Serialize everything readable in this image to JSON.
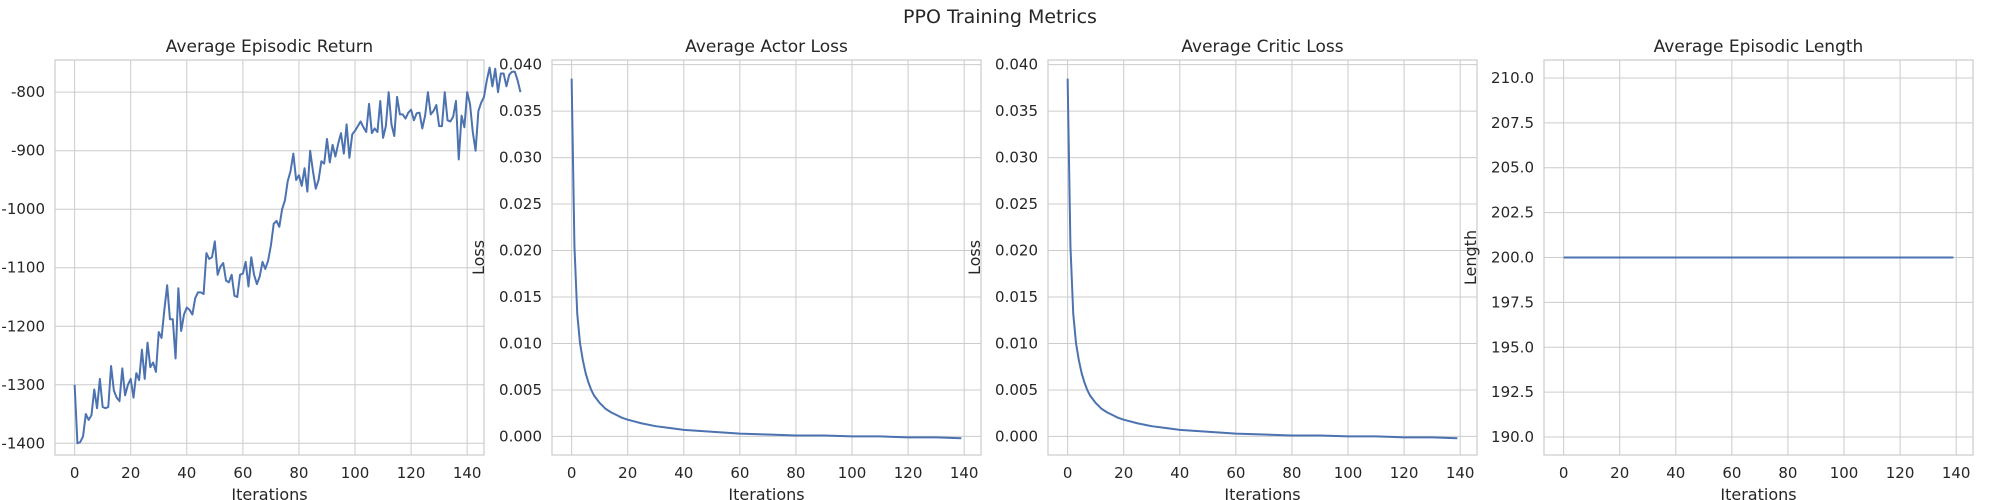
{
  "suptitle": "PPO Training Metrics",
  "chart_data": [
    {
      "type": "line",
      "title": "Average Episodic Return",
      "xlabel": "Iterations",
      "ylabel": "",
      "xlim": [
        -7,
        146
      ],
      "ylim": [
        -1420,
        -745
      ],
      "xticks": [
        0,
        20,
        40,
        60,
        80,
        100,
        120,
        140
      ],
      "yticks": [
        -1400,
        -1300,
        -1200,
        -1100,
        -1000,
        -900,
        -800
      ],
      "ytick_labels": [
        "-1400",
        "-1300",
        "-1200",
        "-1100",
        "-1000",
        "-900",
        "-800"
      ],
      "grid": true,
      "color": "#4c72b0",
      "x_start": 0,
      "x_step": 1,
      "values": [
        -1300,
        -1400,
        -1398,
        -1388,
        -1350,
        -1360,
        -1352,
        -1308,
        -1340,
        -1290,
        -1338,
        -1340,
        -1338,
        -1268,
        -1310,
        -1322,
        -1328,
        -1272,
        -1318,
        -1300,
        -1290,
        -1322,
        -1280,
        -1292,
        -1240,
        -1290,
        -1228,
        -1270,
        -1262,
        -1278,
        -1210,
        -1220,
        -1172,
        -1130,
        -1188,
        -1188,
        -1255,
        -1135,
        -1208,
        -1180,
        -1168,
        -1172,
        -1180,
        -1152,
        -1142,
        -1142,
        -1145,
        -1075,
        -1085,
        -1082,
        -1055,
        -1112,
        -1098,
        -1092,
        -1122,
        -1125,
        -1112,
        -1148,
        -1150,
        -1112,
        -1110,
        -1090,
        -1132,
        -1082,
        -1112,
        -1128,
        -1115,
        -1090,
        -1102,
        -1088,
        -1062,
        -1025,
        -1020,
        -1030,
        -1000,
        -985,
        -952,
        -935,
        -905,
        -950,
        -942,
        -960,
        -930,
        -970,
        -900,
        -935,
        -965,
        -950,
        -918,
        -922,
        -880,
        -920,
        -890,
        -910,
        -888,
        -870,
        -905,
        -855,
        -912,
        -872,
        -866,
        -858,
        -850,
        -860,
        -868,
        -820,
        -870,
        -862,
        -868,
        -815,
        -878,
        -858,
        -800,
        -855,
        -875,
        -808,
        -838,
        -838,
        -845,
        -835,
        -830,
        -848,
        -836,
        -835,
        -862,
        -840,
        -800,
        -838,
        -832,
        -822,
        -858,
        -858,
        -800,
        -848,
        -850,
        -842,
        -815,
        -915,
        -840,
        -860,
        -800,
        -820,
        -868,
        -900,
        -832,
        -818,
        -808,
        -780,
        -758,
        -790,
        -760,
        -800,
        -768,
        -768,
        -790,
        -770,
        -765,
        -765,
        -780,
        -800
      ]
    },
    {
      "type": "line",
      "title": "Average Actor Loss",
      "xlabel": "Iterations",
      "ylabel": "Loss",
      "xlim": [
        -7,
        146
      ],
      "ylim": [
        -0.002,
        0.0405
      ],
      "xticks": [
        0,
        20,
        40,
        60,
        80,
        100,
        120,
        140
      ],
      "yticks": [
        0,
        0.005,
        0.01,
        0.015,
        0.02,
        0.025,
        0.03,
        0.035,
        0.04
      ],
      "ytick_labels": [
        "0.000",
        "0.005",
        "0.010",
        "0.015",
        "0.020",
        "0.025",
        "0.030",
        "0.035",
        "0.040"
      ],
      "grid": true,
      "color": "#4c72b0",
      "x": [
        0,
        1,
        2,
        3,
        4,
        5,
        6,
        7,
        8,
        9,
        10,
        12,
        14,
        16,
        18,
        20,
        25,
        30,
        35,
        40,
        50,
        60,
        70,
        80,
        90,
        100,
        110,
        120,
        130,
        139
      ],
      "values": [
        0.0385,
        0.0205,
        0.0132,
        0.01,
        0.0082,
        0.0068,
        0.0058,
        0.005,
        0.0044,
        0.004,
        0.0036,
        0.003,
        0.0026,
        0.0023,
        0.002,
        0.0018,
        0.0014,
        0.0011,
        0.0009,
        0.0007,
        0.0005,
        0.0003,
        0.0002,
        0.0001,
        0.0001,
        0.0,
        -0.0,
        -0.0001,
        -0.0001,
        -0.0002
      ]
    },
    {
      "type": "line",
      "title": "Average Critic Loss",
      "xlabel": "Iterations",
      "ylabel": "Loss",
      "xlim": [
        -7,
        146
      ],
      "ylim": [
        -0.002,
        0.0405
      ],
      "xticks": [
        0,
        20,
        40,
        60,
        80,
        100,
        120,
        140
      ],
      "yticks": [
        0,
        0.005,
        0.01,
        0.015,
        0.02,
        0.025,
        0.03,
        0.035,
        0.04
      ],
      "ytick_labels": [
        "0.000",
        "0.005",
        "0.010",
        "0.015",
        "0.020",
        "0.025",
        "0.030",
        "0.035",
        "0.040"
      ],
      "grid": true,
      "color": "#4c72b0",
      "x": [
        0,
        1,
        2,
        3,
        4,
        5,
        6,
        7,
        8,
        9,
        10,
        12,
        14,
        16,
        18,
        20,
        25,
        30,
        35,
        40,
        50,
        60,
        70,
        80,
        90,
        100,
        110,
        120,
        130,
        139
      ],
      "values": [
        0.0385,
        0.0205,
        0.0132,
        0.01,
        0.0082,
        0.0068,
        0.0058,
        0.005,
        0.0044,
        0.004,
        0.0036,
        0.003,
        0.0026,
        0.0023,
        0.002,
        0.0018,
        0.0014,
        0.0011,
        0.0009,
        0.0007,
        0.0005,
        0.0003,
        0.0002,
        0.0001,
        0.0001,
        0.0,
        -0.0,
        -0.0001,
        -0.0001,
        -0.0002
      ]
    },
    {
      "type": "line",
      "title": "Average Episodic Length",
      "xlabel": "Iterations",
      "ylabel": "Length",
      "xlim": [
        -7,
        146
      ],
      "ylim": [
        189,
        211
      ],
      "xticks": [
        0,
        20,
        40,
        60,
        80,
        100,
        120,
        140
      ],
      "yticks": [
        190,
        192.5,
        195,
        197.5,
        200,
        202.5,
        205,
        207.5,
        210
      ],
      "ytick_labels": [
        "190.0",
        "192.5",
        "195.0",
        "197.5",
        "200.0",
        "202.5",
        "205.0",
        "207.5",
        "210.0"
      ],
      "grid": true,
      "color": "#4c72b0",
      "x": [
        0,
        139
      ],
      "values": [
        200,
        200
      ]
    }
  ]
}
